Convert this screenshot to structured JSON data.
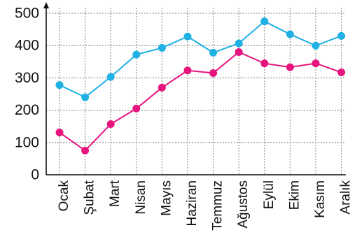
{
  "chart_data": {
    "type": "line",
    "categories": [
      "Ocak",
      "Şubat",
      "Mart",
      "Nisan",
      "Mayıs",
      "Haziran",
      "Temmuz",
      "Ağustos",
      "Eylül",
      "Ekim",
      "Kasım",
      "Aralık"
    ],
    "series": [
      {
        "values": [
          278,
          240,
          303,
          372,
          393,
          428,
          378,
          407,
          475,
          435,
          400,
          430
        ],
        "color": "#1fb1e3"
      },
      {
        "values": [
          131,
          75,
          157,
          205,
          270,
          323,
          315,
          380,
          345,
          333,
          345,
          317
        ],
        "color": "#e6157e"
      }
    ],
    "y_ticks": [
      0,
      100,
      200,
      300,
      400,
      500
    ],
    "ylim": [
      0,
      500
    ],
    "grid": true,
    "legend": "none",
    "title": "",
    "xlabel": "",
    "ylabel": ""
  }
}
